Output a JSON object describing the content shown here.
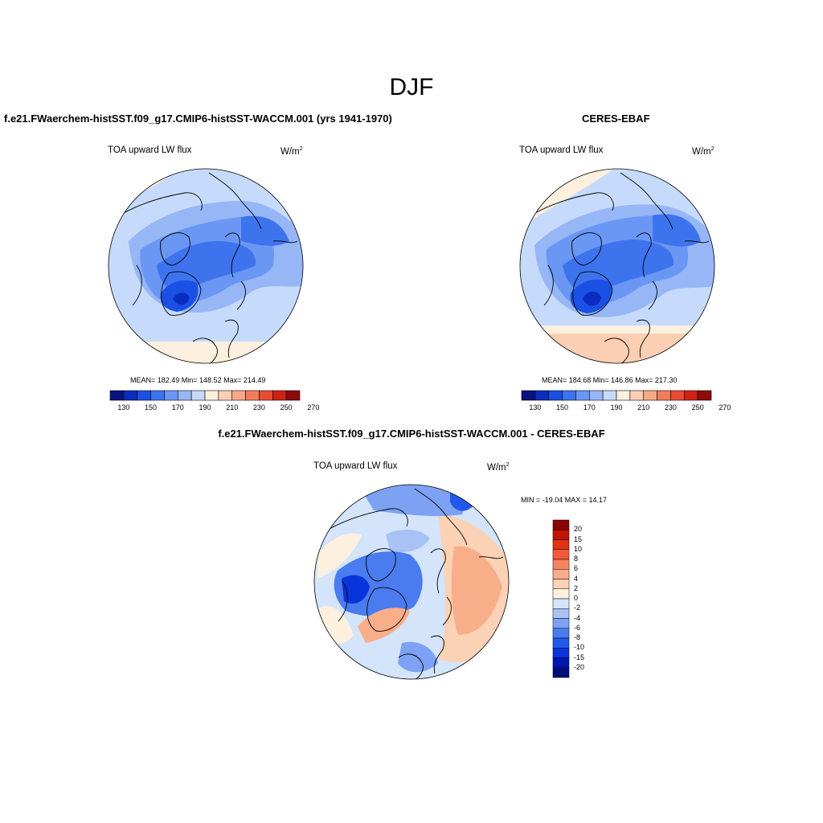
{
  "season": "DJF",
  "units_base": "W/m",
  "units_exp": "2",
  "variable": "TOA upward LW flux",
  "colors": {
    "abs_scale": [
      "#0b137f",
      "#0a2dbf",
      "#1b50e4",
      "#3e73ee",
      "#6a97f4",
      "#96b6f6",
      "#c6dbfb",
      "#fdf0df",
      "#fbcfb3",
      "#f7a887",
      "#f27d5c",
      "#e84c32",
      "#cf2114",
      "#8f0a0a"
    ],
    "diff_scale": [
      "#000e79",
      "#0016b2",
      "#0a34db",
      "#2359eb",
      "#4a7bef",
      "#7ea2f3",
      "#a9c2f6",
      "#d3e4fb",
      "#fdf0df",
      "#fbd2b5",
      "#f9ae8a",
      "#f6855f",
      "#f05a38",
      "#e03417",
      "#c21404",
      "#8a0404"
    ]
  },
  "panels": [
    {
      "id": "model",
      "title": "f.e21.FWaerchem-histSST.f09_g17.CMIP6-histSST-WACCM.001 (yrs 1941-1970)",
      "stats": "MEAN= 182.49  Min= 148.52  Max= 214.49",
      "tick_labels": [
        "130",
        "150",
        "170",
        "190",
        "210",
        "230",
        "250",
        "270"
      ]
    },
    {
      "id": "obs",
      "title": "CERES-EBAF",
      "stats": "MEAN= 184.68  Min= 146.86  Max= 217.30",
      "tick_labels": [
        "130",
        "150",
        "170",
        "190",
        "210",
        "230",
        "250",
        "270"
      ]
    }
  ],
  "diff": {
    "title": "f.e21.FWaerchem-histSST.f09_g17.CMIP6-histSST-WACCM.001 - CERES-EBAF",
    "stats": "MIN = -19.04 MAX =  14.17",
    "tick_labels": [
      "20",
      "15",
      "10",
      "8",
      "6",
      "4",
      "2",
      "0",
      "-2",
      "-4",
      "-6",
      "-8",
      "-10",
      "-15",
      "-20"
    ]
  }
}
